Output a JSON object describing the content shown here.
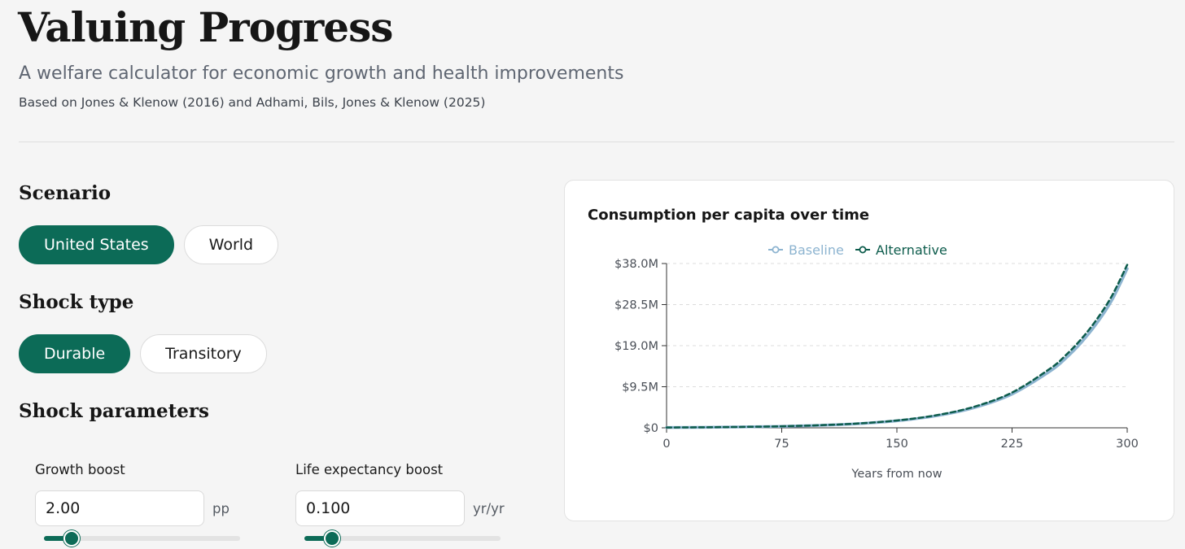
{
  "header": {
    "title": "Valuing Progress",
    "subtitle": "A welfare calculator for economic growth and health improvements",
    "citation": "Based on Jones & Klenow (2016) and Adhami, Bils, Jones & Klenow (2025)"
  },
  "scenario": {
    "heading": "Scenario",
    "options": [
      {
        "label": "United States",
        "active": true
      },
      {
        "label": "World",
        "active": false
      }
    ]
  },
  "shock_type": {
    "heading": "Shock type",
    "options": [
      {
        "label": "Durable",
        "active": true
      },
      {
        "label": "Transitory",
        "active": false
      }
    ]
  },
  "shock_parameters": {
    "heading": "Shock parameters",
    "growth_boost": {
      "label": "Growth boost",
      "value": "2.00",
      "unit": "pp",
      "slider_fraction": 0.14
    },
    "life_expectancy_boost": {
      "label": "Life expectancy boost",
      "value": "0.100",
      "unit": "yr/yr",
      "slider_fraction": 0.14
    }
  },
  "colors": {
    "accent": "#0c6b57",
    "baseline": "#8db4d0",
    "alternative": "#0d5c4c"
  },
  "chart_data": {
    "type": "line",
    "title": "Consumption per capita over time",
    "xlabel": "Years from now",
    "ylabel": "",
    "xlim": [
      0,
      300
    ],
    "ylim": [
      0,
      38000000
    ],
    "xticks": [
      0,
      75,
      150,
      225,
      300
    ],
    "xtick_labels": [
      "0",
      "75",
      "150",
      "225",
      "300"
    ],
    "yticks": [
      0,
      9500000,
      19000000,
      28500000,
      38000000
    ],
    "ytick_labels": [
      "$0",
      "$9.5M",
      "$19.0M",
      "$28.5M",
      "$38.0M"
    ],
    "grid": true,
    "legend_position": "top-center",
    "x": [
      0,
      25,
      50,
      75,
      100,
      125,
      150,
      175,
      200,
      225,
      250,
      260,
      270,
      280,
      290,
      300
    ],
    "series": [
      {
        "name": "Baseline",
        "values": [
          70000,
          120000,
          200000,
          340000,
          570000,
          960000,
          1620000,
          2740000,
          4620000,
          7800000,
          13150000,
          16100000,
          19700000,
          24100000,
          29500000,
          36800000
        ]
      },
      {
        "name": "Alternative",
        "values": [
          70000,
          125000,
          210000,
          355000,
          600000,
          1010000,
          1700000,
          2870000,
          4840000,
          8160000,
          13750000,
          16800000,
          20500000,
          25000000,
          30500000,
          37700000
        ]
      }
    ]
  }
}
